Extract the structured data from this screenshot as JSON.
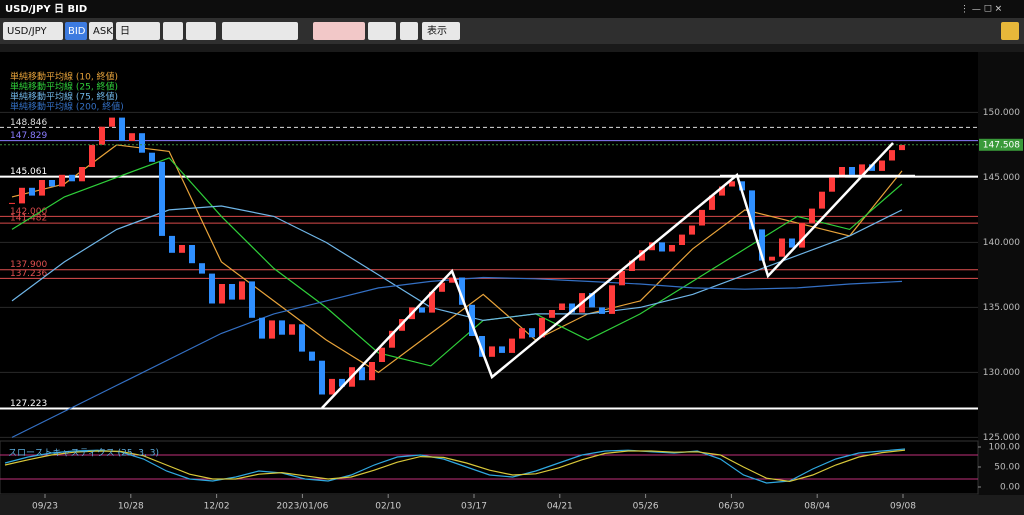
{
  "window_title": "USD/JPY 日 BID",
  "toolbar": {
    "symbol": "USD/JPY",
    "bid": "BID",
    "ask": "ASK",
    "period": "日",
    "view": "表示"
  },
  "chart_data": {
    "type": "candlestick",
    "closes": [
      143.0,
      144.2,
      143.6,
      144.8,
      144.3,
      145.2,
      144.7,
      145.8,
      147.5,
      148.9,
      149.6,
      147.8,
      148.4,
      146.9,
      146.2,
      140.5,
      139.2,
      139.8,
      138.4,
      137.6,
      135.3,
      136.8,
      135.6,
      137.0,
      134.2,
      132.6,
      134.0,
      132.9,
      133.7,
      131.6,
      130.9,
      128.3,
      129.5,
      128.9,
      130.4,
      129.4,
      130.8,
      131.9,
      133.2,
      134.1,
      135.0,
      134.6,
      136.2,
      136.9,
      137.3,
      135.2,
      132.8,
      131.2,
      132.0,
      131.5,
      132.6,
      133.4,
      132.7,
      134.2,
      134.8,
      135.3,
      134.6,
      136.1,
      135.0,
      134.5,
      136.7,
      137.8,
      138.6,
      139.4,
      140.0,
      139.3,
      139.8,
      140.6,
      141.3,
      142.5,
      143.6,
      144.3,
      144.7,
      144.0,
      141.0,
      138.6,
      138.9,
      140.3,
      139.6,
      141.5,
      142.6,
      143.9,
      145.0,
      145.8,
      145.2,
      146.0,
      145.5,
      146.3,
      147.1,
      147.5
    ],
    "up_color": "#ff3b3b",
    "down_color": "#2f8fff",
    "moving_averages": [
      {
        "name": "単純移動平均線 (10, 終値)",
        "color": "#e8a33a",
        "values": [
          143.5,
          144.5,
          147.5,
          147.0,
          138.5,
          135.5,
          132.5,
          130.0,
          133.0,
          136.0,
          132.5,
          134.5,
          135.5,
          139.5,
          142.5,
          141.5,
          140.5,
          145.5
        ]
      },
      {
        "name": "単純移動平均線 (25, 終値)",
        "color": "#2fcf3a",
        "values": [
          141.0,
          143.5,
          145.0,
          146.5,
          142.0,
          138.0,
          135.0,
          131.5,
          130.5,
          134.0,
          134.5,
          132.5,
          134.5,
          137.0,
          139.5,
          142.0,
          141.0,
          144.5
        ]
      },
      {
        "name": "単純移動平均線 (75, 終値)",
        "color": "#6fb6e8",
        "values": [
          135.5,
          138.5,
          141.0,
          142.5,
          142.8,
          142.0,
          140.0,
          137.5,
          135.0,
          134.0,
          134.5,
          134.5,
          135.0,
          136.0,
          137.5,
          139.0,
          140.5,
          142.5
        ]
      },
      {
        "name": "単純移動平均線 (200, 終値)",
        "color": "#3470c4",
        "values": [
          125.0,
          127.0,
          129.0,
          131.0,
          133.0,
          134.5,
          135.5,
          136.5,
          137.0,
          137.3,
          137.2,
          137.0,
          136.8,
          136.5,
          136.4,
          136.5,
          136.8,
          137.0
        ]
      }
    ],
    "levels": [
      {
        "value": 148.846,
        "color": "#dddddd",
        "dashed": true
      },
      {
        "value": 147.829,
        "color": "#8a7cff"
      },
      {
        "value": 145.061,
        "color": "#ffffff"
      },
      {
        "value": 142,
        "label": "142.000",
        "color": "#d84a4a"
      },
      {
        "value": 141.482,
        "color": "#d84a4a"
      },
      {
        "value": 137.9,
        "label": "137.900",
        "color": "#e05050"
      },
      {
        "value": 137.236,
        "label": "137.236",
        "color": "#e05050"
      },
      {
        "value": 127.223,
        "color": "#ffffff"
      }
    ],
    "current_price": 147.508,
    "ylim": [
      124.8,
      154.8
    ],
    "yticks": [
      {
        "value": 125,
        "label": "125.000"
      },
      {
        "value": 130,
        "label": "130.000"
      },
      {
        "value": 135,
        "label": "135.000"
      },
      {
        "value": 140,
        "label": "140.000"
      },
      {
        "value": 145,
        "label": "145.000"
      },
      {
        "value": 150,
        "label": "150.000"
      }
    ],
    "x_labels": [
      "09/23",
      "10/28",
      "12/02",
      "2023/01/06",
      "02/10",
      "03/17",
      "04/21",
      "05/26",
      "06/30",
      "08/04",
      "09/08"
    ],
    "stochastic": {
      "title": "スローストキャスティクス (25, 3, 3)",
      "ylim": [
        0,
        100
      ],
      "yticks": [
        {
          "value": 0,
          "label": "0.00"
        },
        {
          "value": 50,
          "label": "50.00"
        },
        {
          "value": 100,
          "label": "100.00"
        }
      ],
      "levels": [
        80,
        20
      ],
      "series": [
        {
          "color": "#2fa8e0",
          "values": [
            60,
            75,
            85,
            90,
            92,
            88,
            70,
            40,
            20,
            15,
            25,
            40,
            35,
            20,
            15,
            30,
            55,
            75,
            80,
            70,
            50,
            30,
            25,
            40,
            60,
            80,
            90,
            92,
            88,
            85,
            90,
            70,
            30,
            10,
            15,
            45,
            70,
            85,
            90,
            95
          ]
        },
        {
          "color": "#d8c83a",
          "values": [
            55,
            68,
            80,
            87,
            90,
            89,
            78,
            55,
            32,
            20,
            20,
            32,
            36,
            28,
            20,
            25,
            42,
            62,
            76,
            74,
            60,
            42,
            30,
            33,
            48,
            68,
            84,
            90,
            90,
            87,
            88,
            80,
            50,
            22,
            14,
            30,
            55,
            75,
            86,
            92
          ]
        }
      ]
    }
  }
}
